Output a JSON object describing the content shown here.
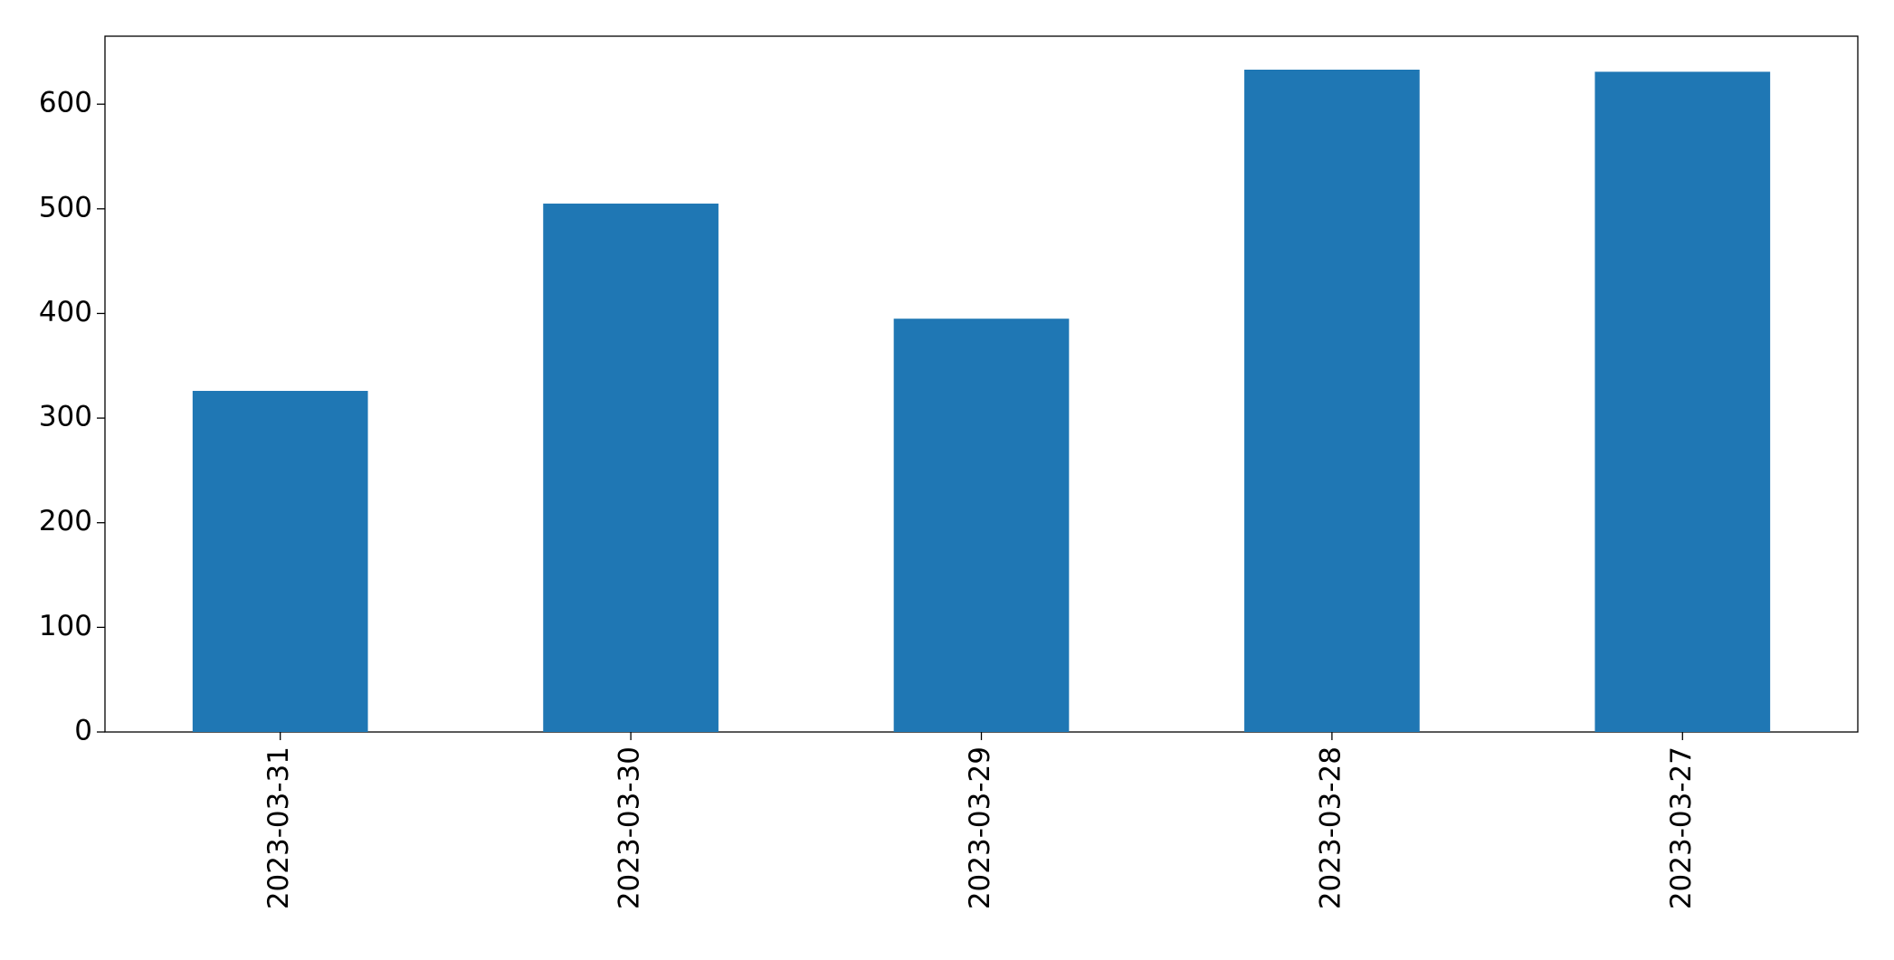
{
  "chart_data": {
    "type": "bar",
    "categories": [
      "2023-03-31",
      "2023-03-30",
      "2023-03-29",
      "2023-03-28",
      "2023-03-27"
    ],
    "values": [
      326,
      505,
      395,
      633,
      631
    ],
    "color": "#1f77b4",
    "ylim": [
      0,
      665
    ],
    "yticks": [
      0,
      100,
      200,
      300,
      400,
      500,
      600
    ],
    "grid": false
  }
}
